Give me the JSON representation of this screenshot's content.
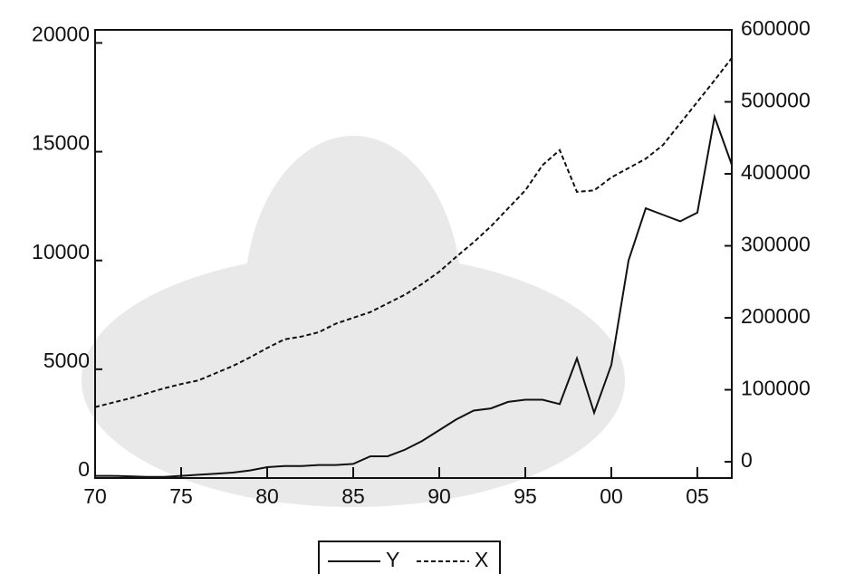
{
  "chart_data": {
    "type": "line",
    "x": [
      1970,
      1971,
      1972,
      1973,
      1974,
      1975,
      1976,
      1977,
      1978,
      1979,
      1980,
      1981,
      1982,
      1983,
      1984,
      1985,
      1986,
      1987,
      1988,
      1989,
      1990,
      1991,
      1992,
      1993,
      1994,
      1995,
      1996,
      1997,
      1998,
      1999,
      2000,
      2001,
      2002,
      2003,
      2004,
      2005,
      2006,
      2007
    ],
    "series": [
      {
        "name": "Y",
        "color": "#111111",
        "dash": "solid",
        "values": [
          100,
          100,
          80,
          50,
          50,
          100,
          150,
          200,
          250,
          350,
          500,
          550,
          550,
          600,
          600,
          650,
          1000,
          1000,
          1300,
          1700,
          2200,
          2700,
          3100,
          3200,
          3500,
          3600,
          3600,
          3400,
          5500,
          3000,
          5200,
          10000,
          12400,
          12100,
          11800,
          12200,
          16600,
          14400
        ]
      },
      {
        "name": "X",
        "color": "#111111",
        "dash": "dashed",
        "axis": "y2",
        "values": [
          76000,
          82000,
          88000,
          95000,
          102000,
          108000,
          113000,
          123000,
          133000,
          145000,
          158000,
          170000,
          174000,
          180000,
          192000,
          200000,
          208000,
          220000,
          232000,
          247000,
          264000,
          285000,
          305000,
          327000,
          352000,
          377000,
          412000,
          433000,
          375000,
          377000,
          395000,
          408000,
          421000,
          440000,
          470000,
          500000,
          530000,
          561000
        ]
      }
    ],
    "xlim": [
      1970,
      2007
    ],
    "xticks": [
      {
        "value": 1970,
        "label": "70"
      },
      {
        "value": 1975,
        "label": "75"
      },
      {
        "value": 1980,
        "label": "80"
      },
      {
        "value": 1985,
        "label": "85"
      },
      {
        "value": 1990,
        "label": "90"
      },
      {
        "value": 1995,
        "label": "95"
      },
      {
        "value": 2000,
        "label": "00"
      },
      {
        "value": 2005,
        "label": "05"
      }
    ],
    "ylim": [
      0,
      20600
    ],
    "yticks": [
      0,
      5000,
      10000,
      15000,
      20000
    ],
    "y2lim": [
      -22600,
      600000
    ],
    "y2ticks": [
      0,
      100000,
      200000,
      300000,
      400000,
      500000,
      600000
    ],
    "legend": "bottom"
  }
}
